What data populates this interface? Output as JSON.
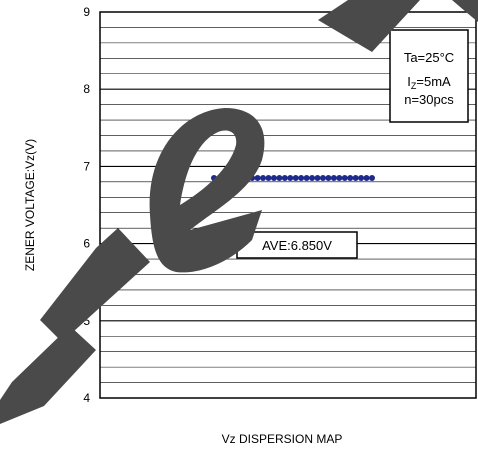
{
  "chart_data": {
    "type": "scatter",
    "title": "Vz DISPERSION MAP",
    "ylabel": "ZENER VOLTAGE:Vz(V)",
    "xlabel": "",
    "ylim": [
      4,
      9
    ],
    "yticks": [
      "9",
      "8",
      "7",
      "6",
      "5",
      "4"
    ],
    "minor_grid_step": 0.2,
    "grid": true,
    "conditions": {
      "ta": "Ta=25°C",
      "iz_prefix": "I",
      "iz_sub": "Z",
      "iz_value": "=5mA",
      "n": "n=30pcs"
    },
    "average_label": "AVE:6.850V",
    "series": [
      {
        "marker_color": "#1f2a8c",
        "values": [
          6.85,
          6.85,
          6.85,
          6.85,
          6.85,
          6.85,
          6.85,
          6.85,
          6.85,
          6.85,
          6.85,
          6.85,
          6.85,
          6.85,
          6.85,
          6.85,
          6.85,
          6.85,
          6.85,
          6.85,
          6.85,
          6.85,
          6.85,
          6.85,
          6.85,
          6.85,
          6.85,
          6.85,
          6.85,
          6.85
        ]
      }
    ],
    "watermark_color": "#4a4a4a"
  }
}
